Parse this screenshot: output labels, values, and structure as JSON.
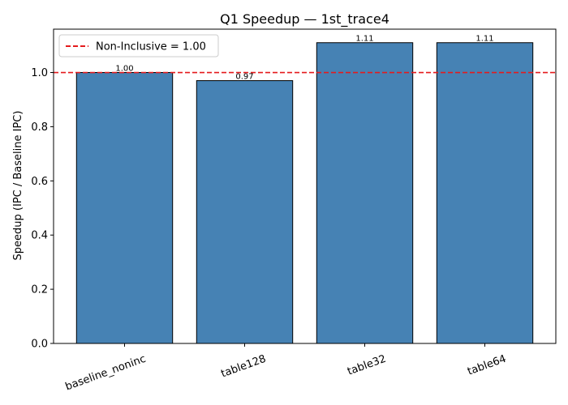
{
  "chart_data": {
    "type": "bar",
    "title": "Q1 Speedup — 1st_trace4",
    "xlabel": "",
    "ylabel": "Speedup (IPC / Baseline IPC)",
    "categories": [
      "baseline_noninc",
      "table128",
      "table32",
      "table64"
    ],
    "values": [
      1.0,
      0.97,
      1.11,
      1.11
    ],
    "value_labels": [
      "1.00",
      "0.97",
      "1.11",
      "1.11"
    ],
    "ylim": [
      0,
      1.16
    ],
    "yticks": [
      0.0,
      0.2,
      0.4,
      0.6,
      0.8,
      1.0
    ],
    "ytick_labels": [
      "0.0",
      "0.2",
      "0.4",
      "0.6",
      "0.8",
      "1.0"
    ],
    "xtick_rotation_deg": -20,
    "bar_color": "#4682b4",
    "bar_edge_color": "#000000",
    "reference_line": {
      "value": 1.0,
      "label": "Non-Inclusive = 1.00",
      "color": "#e41a1c",
      "style": "dashed"
    },
    "legend": {
      "placement": "top-left"
    },
    "grid": false
  }
}
